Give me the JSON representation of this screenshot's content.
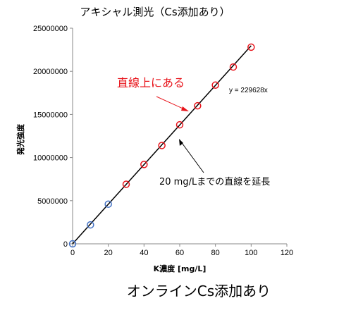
{
  "chart_data": {
    "type": "scatter",
    "title": "アキシャル測光（Cs添加あり）",
    "subtitle_bottom": "オンラインCs添加あり",
    "xlabel": "K濃度 [mg/L]",
    "ylabel": "発光強度",
    "xlim": [
      0,
      120
    ],
    "ylim": [
      0,
      25000000
    ],
    "x_ticks": [
      0,
      20,
      40,
      60,
      80,
      100,
      120
    ],
    "y_ticks": [
      0,
      5000000,
      10000000,
      15000000,
      20000000,
      25000000
    ],
    "x_tick_labels": [
      "0",
      "20",
      "40",
      "60",
      "80",
      "100",
      "120"
    ],
    "y_tick_labels": [
      "0",
      "5000000",
      "10000000",
      "15000000",
      "20000000",
      "25000000"
    ],
    "grid": false,
    "series": [
      {
        "color": "#4472c4",
        "marker": "open-circle",
        "x": [
          0,
          10,
          20
        ],
        "y": [
          0,
          2200000,
          4600000
        ]
      },
      {
        "color": "#e8141b",
        "marker": "open-circle",
        "x": [
          30,
          40,
          50,
          60,
          70,
          80,
          90,
          100
        ],
        "y": [
          6900000,
          9200000,
          11400000,
          13800000,
          16000000,
          18400000,
          20500000,
          22800000
        ]
      }
    ],
    "trendline": {
      "slope": 229628,
      "color": "#000000",
      "x_range": [
        0,
        100
      ],
      "equation_label": "y = 229628x"
    },
    "annotations": [
      {
        "text": "直線上にある",
        "color": "#e8141b"
      },
      {
        "text": "20 mg/Lまでの直線を延長",
        "color": "#000000"
      }
    ]
  }
}
